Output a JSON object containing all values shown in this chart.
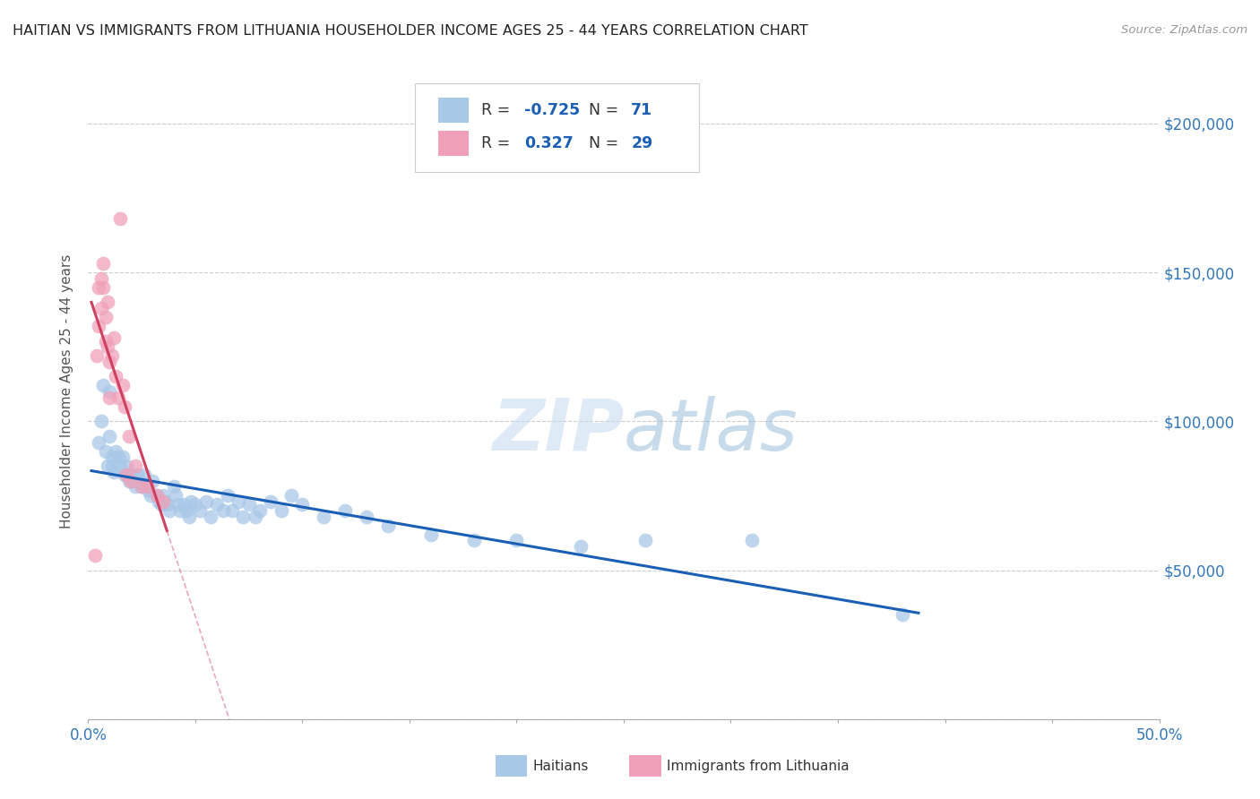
{
  "title": "HAITIAN VS IMMIGRANTS FROM LITHUANIA HOUSEHOLDER INCOME AGES 25 - 44 YEARS CORRELATION CHART",
  "source": "Source: ZipAtlas.com",
  "ylabel": "Householder Income Ages 25 - 44 years",
  "xlim": [
    0.0,
    0.5
  ],
  "ylim": [
    0,
    220000
  ],
  "yticks": [
    0,
    50000,
    100000,
    150000,
    200000
  ],
  "yticklabels_right": [
    "",
    "$50,000",
    "$100,000",
    "$150,000",
    "$200,000"
  ],
  "legend_r_blue": "-0.725",
  "legend_n_blue": "71",
  "legend_r_pink": "0.327",
  "legend_n_pink": "29",
  "watermark_zip": "ZIP",
  "watermark_atlas": "atlas",
  "blue_color": "#a8c8e8",
  "pink_color": "#f0a0b8",
  "blue_line_color": "#1a5fb4",
  "pink_line_color": "#d04060",
  "grid_color": "#cccccc",
  "blue_scatter_x": [
    0.005,
    0.006,
    0.007,
    0.008,
    0.009,
    0.01,
    0.01,
    0.011,
    0.011,
    0.012,
    0.013,
    0.014,
    0.015,
    0.016,
    0.017,
    0.018,
    0.019,
    0.02,
    0.021,
    0.022,
    0.023,
    0.024,
    0.025,
    0.026,
    0.027,
    0.028,
    0.029,
    0.03,
    0.032,
    0.033,
    0.034,
    0.035,
    0.036,
    0.037,
    0.038,
    0.04,
    0.041,
    0.042,
    0.043,
    0.045,
    0.046,
    0.047,
    0.048,
    0.05,
    0.052,
    0.055,
    0.057,
    0.06,
    0.063,
    0.065,
    0.067,
    0.07,
    0.072,
    0.075,
    0.078,
    0.08,
    0.085,
    0.09,
    0.095,
    0.1,
    0.11,
    0.12,
    0.13,
    0.14,
    0.16,
    0.18,
    0.2,
    0.23,
    0.26,
    0.31,
    0.38
  ],
  "blue_scatter_y": [
    93000,
    100000,
    112000,
    90000,
    85000,
    110000,
    95000,
    88000,
    85000,
    83000,
    90000,
    88000,
    85000,
    88000,
    82000,
    85000,
    80000,
    82000,
    80000,
    78000,
    82000,
    80000,
    78000,
    82000,
    78000,
    77000,
    75000,
    80000,
    75000,
    73000,
    72000,
    75000,
    73000,
    72000,
    70000,
    78000,
    75000,
    72000,
    70000,
    72000,
    70000,
    68000,
    73000,
    72000,
    70000,
    73000,
    68000,
    72000,
    70000,
    75000,
    70000,
    73000,
    68000,
    72000,
    68000,
    70000,
    73000,
    70000,
    75000,
    72000,
    68000,
    70000,
    68000,
    65000,
    62000,
    60000,
    60000,
    58000,
    60000,
    60000,
    35000
  ],
  "pink_scatter_x": [
    0.003,
    0.004,
    0.005,
    0.005,
    0.006,
    0.006,
    0.007,
    0.007,
    0.008,
    0.008,
    0.009,
    0.009,
    0.01,
    0.01,
    0.011,
    0.012,
    0.013,
    0.014,
    0.015,
    0.016,
    0.017,
    0.018,
    0.019,
    0.02,
    0.022,
    0.025,
    0.028,
    0.032,
    0.035
  ],
  "pink_scatter_y": [
    55000,
    122000,
    145000,
    132000,
    148000,
    138000,
    153000,
    145000,
    135000,
    127000,
    140000,
    125000,
    120000,
    108000,
    122000,
    128000,
    115000,
    108000,
    168000,
    112000,
    105000,
    82000,
    95000,
    80000,
    85000,
    78000,
    78000,
    75000,
    73000
  ]
}
